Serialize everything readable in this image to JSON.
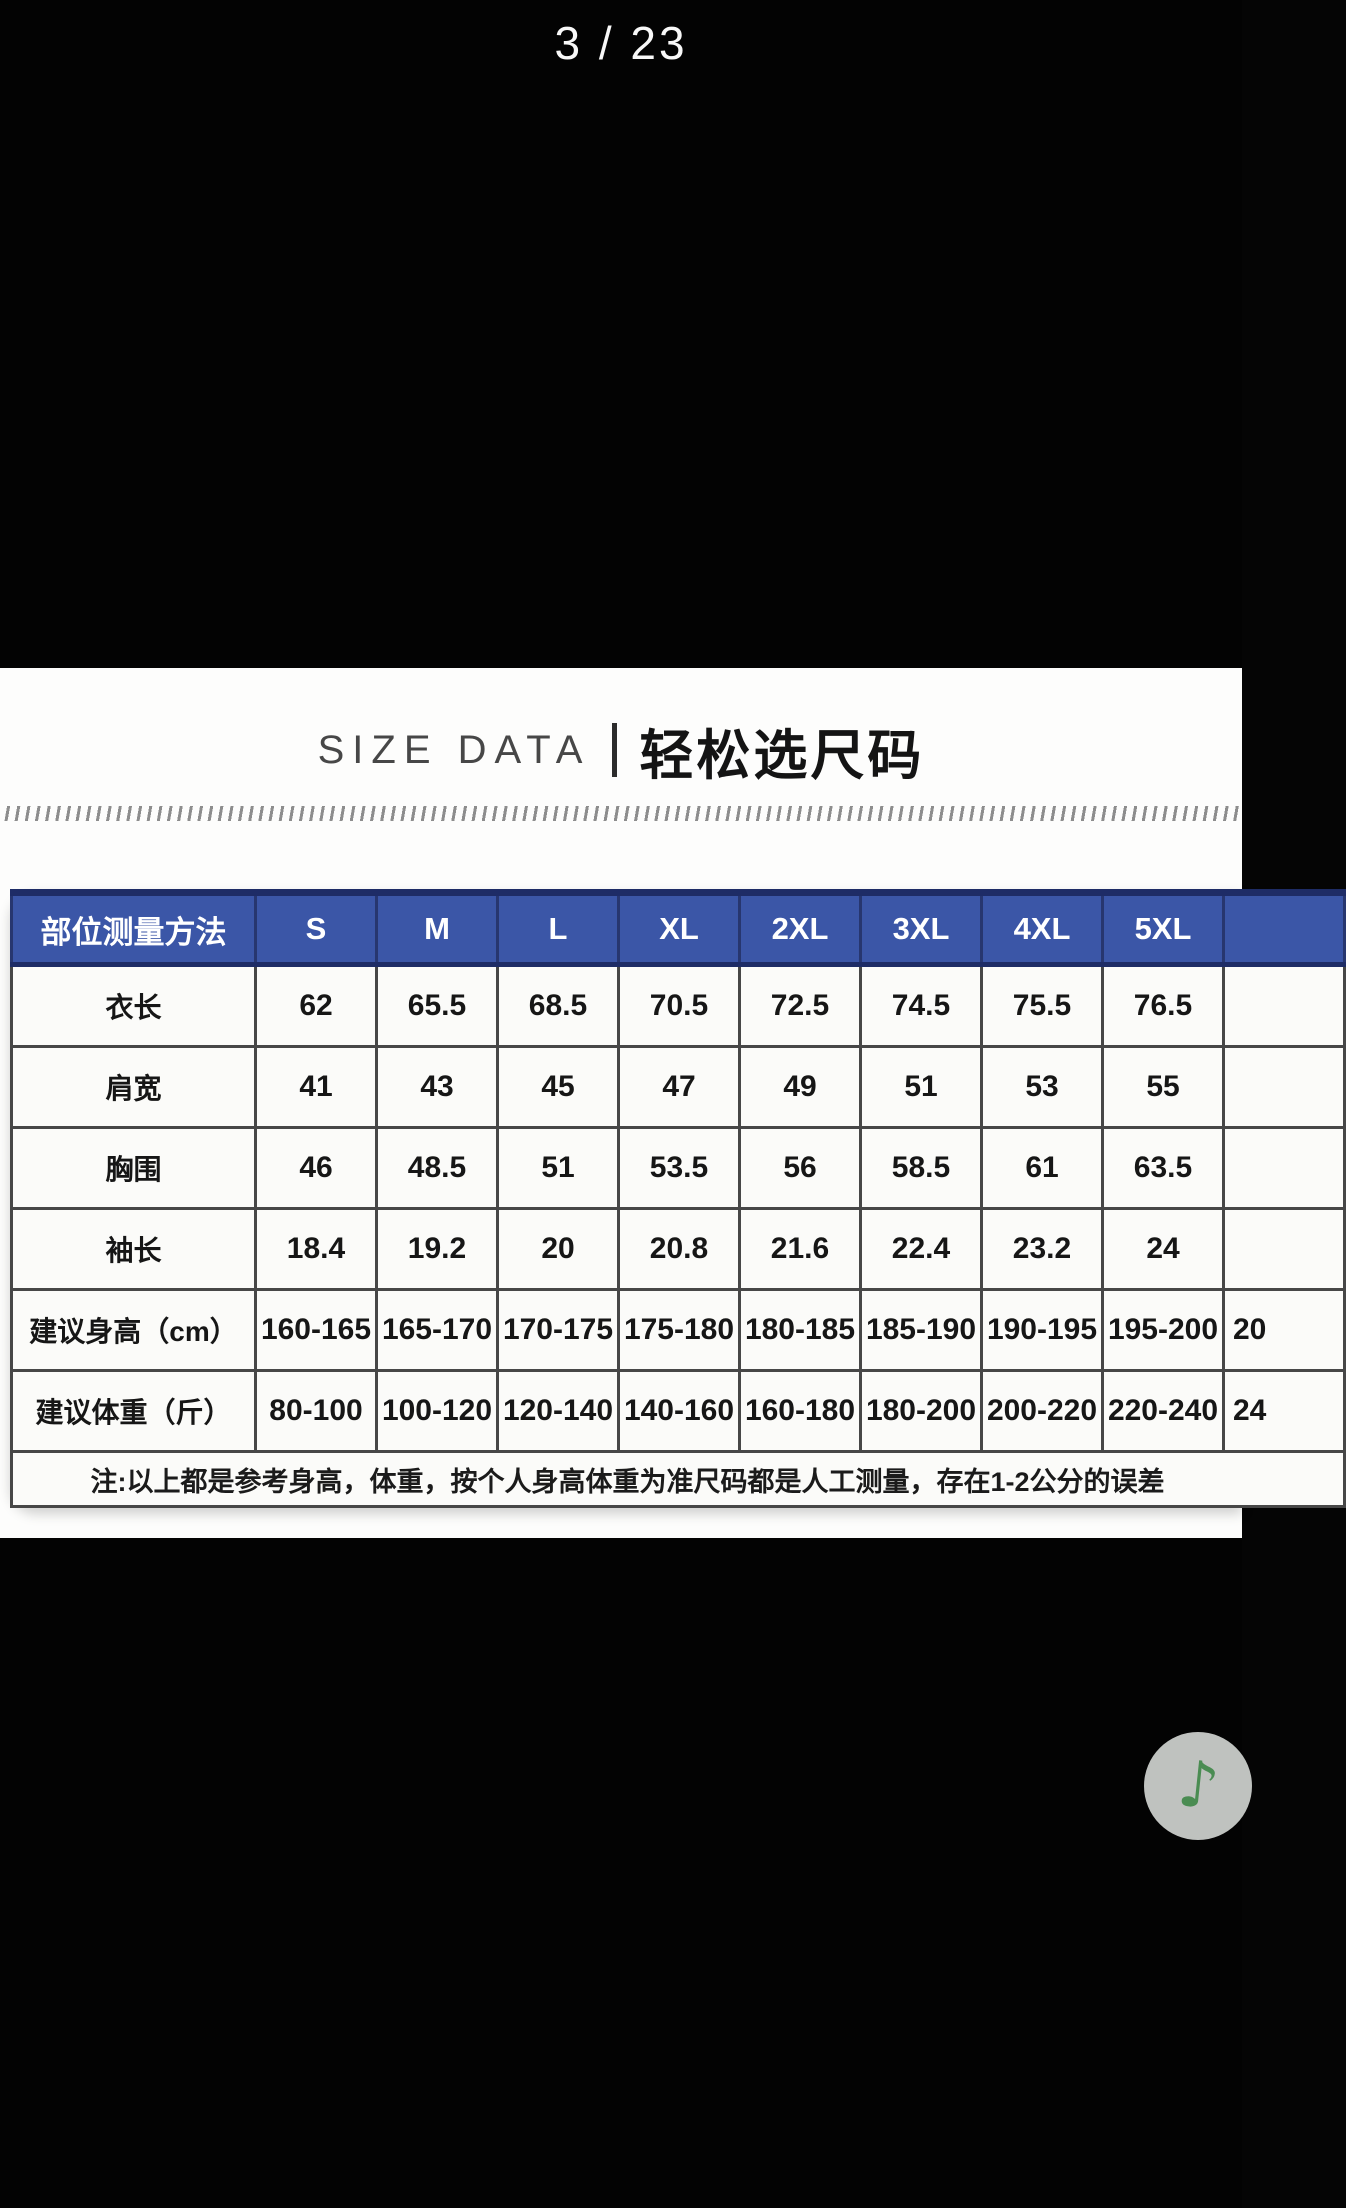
{
  "carousel": {
    "page_indicator": "3 / 23"
  },
  "section_title": {
    "en": "SIZE DATA",
    "zh": "轻松选尺码"
  },
  "size_table": {
    "header": [
      "部位测量方法",
      "S",
      "M",
      "L",
      "XL",
      "2XL",
      "3XL",
      "4XL",
      "5XL",
      ""
    ],
    "rows": [
      {
        "label": "衣长",
        "values": [
          "62",
          "65.5",
          "68.5",
          "70.5",
          "72.5",
          "74.5",
          "75.5",
          "76.5",
          ""
        ]
      },
      {
        "label": "肩宽",
        "values": [
          "41",
          "43",
          "45",
          "47",
          "49",
          "51",
          "53",
          "55",
          ""
        ]
      },
      {
        "label": "胸围",
        "values": [
          "46",
          "48.5",
          "51",
          "53.5",
          "56",
          "58.5",
          "61",
          "63.5",
          ""
        ]
      },
      {
        "label": "袖长",
        "values": [
          "18.4",
          "19.2",
          "20",
          "20.8",
          "21.6",
          "22.4",
          "23.2",
          "24",
          ""
        ]
      },
      {
        "label": "建议身高（cm）",
        "values": [
          "160-165",
          "165-170",
          "170-175",
          "175-180",
          "180-185",
          "185-190",
          "190-195",
          "195-200",
          "20"
        ]
      },
      {
        "label": "建议体重（斤）",
        "values": [
          "80-100",
          "100-120",
          "120-140",
          "140-160",
          "160-180",
          "180-200",
          "200-220",
          "220-240",
          "24"
        ]
      }
    ],
    "note": "注:以上都是参考身高，体重，按个人身高体重为准尺码都是人工测量，存在1-2公分的误差"
  },
  "music_button": {
    "glyph": "♪"
  },
  "colors": {
    "header_blue": "#3b56a7",
    "header_navy": "#1e2c66",
    "note_green": "#4a8c52",
    "button_gray": "#bfc2bf"
  }
}
